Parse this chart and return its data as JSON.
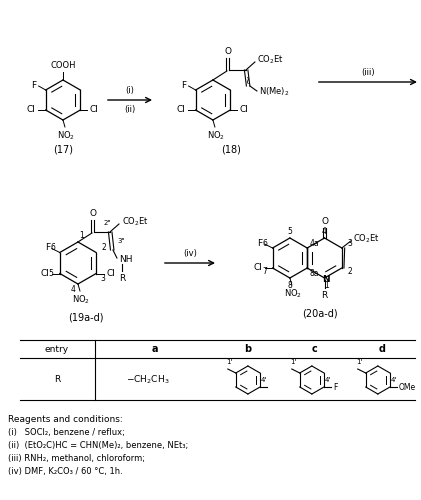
{
  "fig_width": 4.21,
  "fig_height": 5.0,
  "dpi": 100,
  "bg": "#ffffff",
  "reagents_header": "Reagents and conditions:",
  "reagents": [
    "(i)   SOCl₂, benzene / reflux;",
    "(ii)  (EtO₂C)HC = CHN(Me)₂, benzene, NEt₃;",
    "(iii) RNH₂, methanol, chloroform;",
    "(iv) DMF, K₂CO₃ / 60 °C, 1h."
  ]
}
